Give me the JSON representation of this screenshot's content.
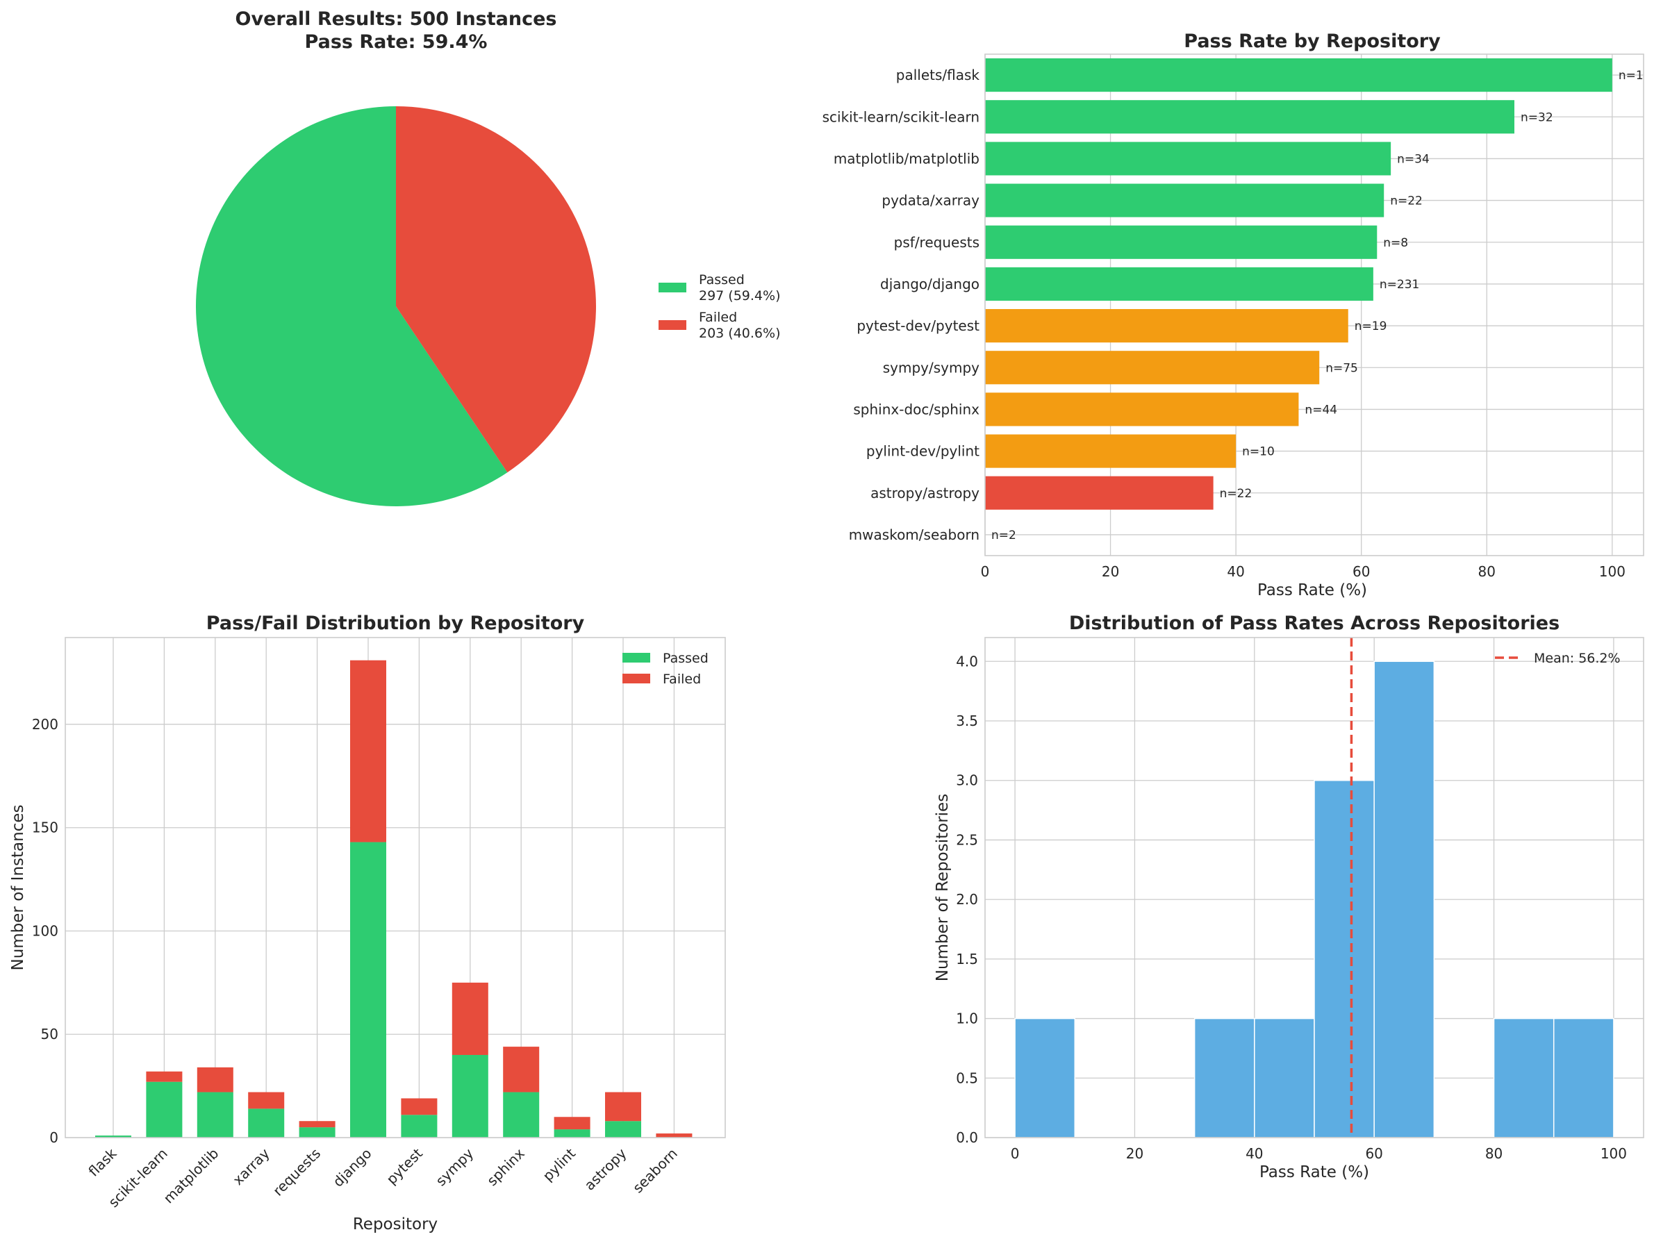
{
  "colors": {
    "passed": "#2ecc71",
    "failed": "#e74c3c",
    "mid": "#f39c12",
    "hist": "#5dade2",
    "mean_line": "#e74c3c"
  },
  "chart_data": [
    {
      "type": "pie",
      "title_line1": "Overall Results: 500 Instances",
      "title_line2": "Pass Rate: 59.4%",
      "slices": [
        {
          "name": "Passed",
          "value": 297,
          "label": "297 (59.4%)",
          "color": "#2ecc71"
        },
        {
          "name": "Failed",
          "value": 203,
          "label": "203 (40.6%)",
          "color": "#e74c3c"
        }
      ],
      "legend_position": "right"
    },
    {
      "type": "bar",
      "orientation": "horizontal",
      "title": "Pass Rate by Repository",
      "xlabel": "Pass Rate (%)",
      "xlim": [
        0,
        105
      ],
      "xticks": [
        0,
        20,
        40,
        60,
        80,
        100
      ],
      "categories": [
        "pallets/flask",
        "scikit-learn/scikit-learn",
        "matplotlib/matplotlib",
        "pydata/xarray",
        "psf/requests",
        "django/django",
        "pytest-dev/pytest",
        "sympy/sympy",
        "sphinx-doc/sphinx",
        "pylint-dev/pylint",
        "astropy/astropy",
        "mwaskom/seaborn"
      ],
      "values": [
        100.0,
        84.4,
        64.7,
        63.6,
        62.5,
        61.9,
        57.9,
        53.3,
        50.0,
        40.0,
        36.4,
        0.0
      ],
      "counts": [
        "n=1",
        "n=32",
        "n=34",
        "n=22",
        "n=8",
        "n=231",
        "n=19",
        "n=75",
        "n=44",
        "n=10",
        "n=22",
        "n=2"
      ],
      "colors": [
        "#2ecc71",
        "#2ecc71",
        "#2ecc71",
        "#2ecc71",
        "#2ecc71",
        "#2ecc71",
        "#f39c12",
        "#f39c12",
        "#f39c12",
        "#f39c12",
        "#e74c3c",
        "#e74c3c"
      ]
    },
    {
      "type": "bar",
      "stacked": true,
      "title": "Pass/Fail Distribution by Repository",
      "xlabel": "Repository",
      "ylabel": "Number of Instances",
      "ylim": [
        0,
        242
      ],
      "yticks": [
        0,
        50,
        100,
        150,
        200
      ],
      "categories": [
        "flask",
        "scikit-learn",
        "matplotlib",
        "xarray",
        "requests",
        "django",
        "pytest",
        "sympy",
        "sphinx",
        "pylint",
        "astropy",
        "seaborn"
      ],
      "series": [
        {
          "name": "Passed",
          "color": "#2ecc71",
          "values": [
            1,
            27,
            22,
            14,
            5,
            143,
            11,
            40,
            22,
            4,
            8,
            0
          ]
        },
        {
          "name": "Failed",
          "color": "#e74c3c",
          "values": [
            0,
            5,
            12,
            8,
            3,
            88,
            8,
            35,
            22,
            6,
            14,
            2
          ]
        }
      ],
      "legend_position": "top-right"
    },
    {
      "type": "histogram",
      "title": "Distribution of Pass Rates Across Repositories",
      "xlabel": "Pass Rate (%)",
      "ylabel": "Number of Repositories",
      "xlim": [
        -5,
        105
      ],
      "ylim": [
        0,
        4.2
      ],
      "xticks": [
        0,
        20,
        40,
        60,
        80,
        100
      ],
      "yticks": [
        "0.0",
        "0.5",
        "1.0",
        "1.5",
        "2.0",
        "2.5",
        "3.0",
        "3.5",
        "4.0"
      ],
      "bin_edges": [
        0,
        10,
        20,
        30,
        40,
        50,
        60,
        70,
        80,
        90,
        100
      ],
      "counts": [
        1,
        0,
        0,
        1,
        1,
        3,
        4,
        0,
        1,
        1
      ],
      "mean": 56.2,
      "mean_label": "Mean: 56.2%",
      "legend_position": "top-right"
    }
  ]
}
